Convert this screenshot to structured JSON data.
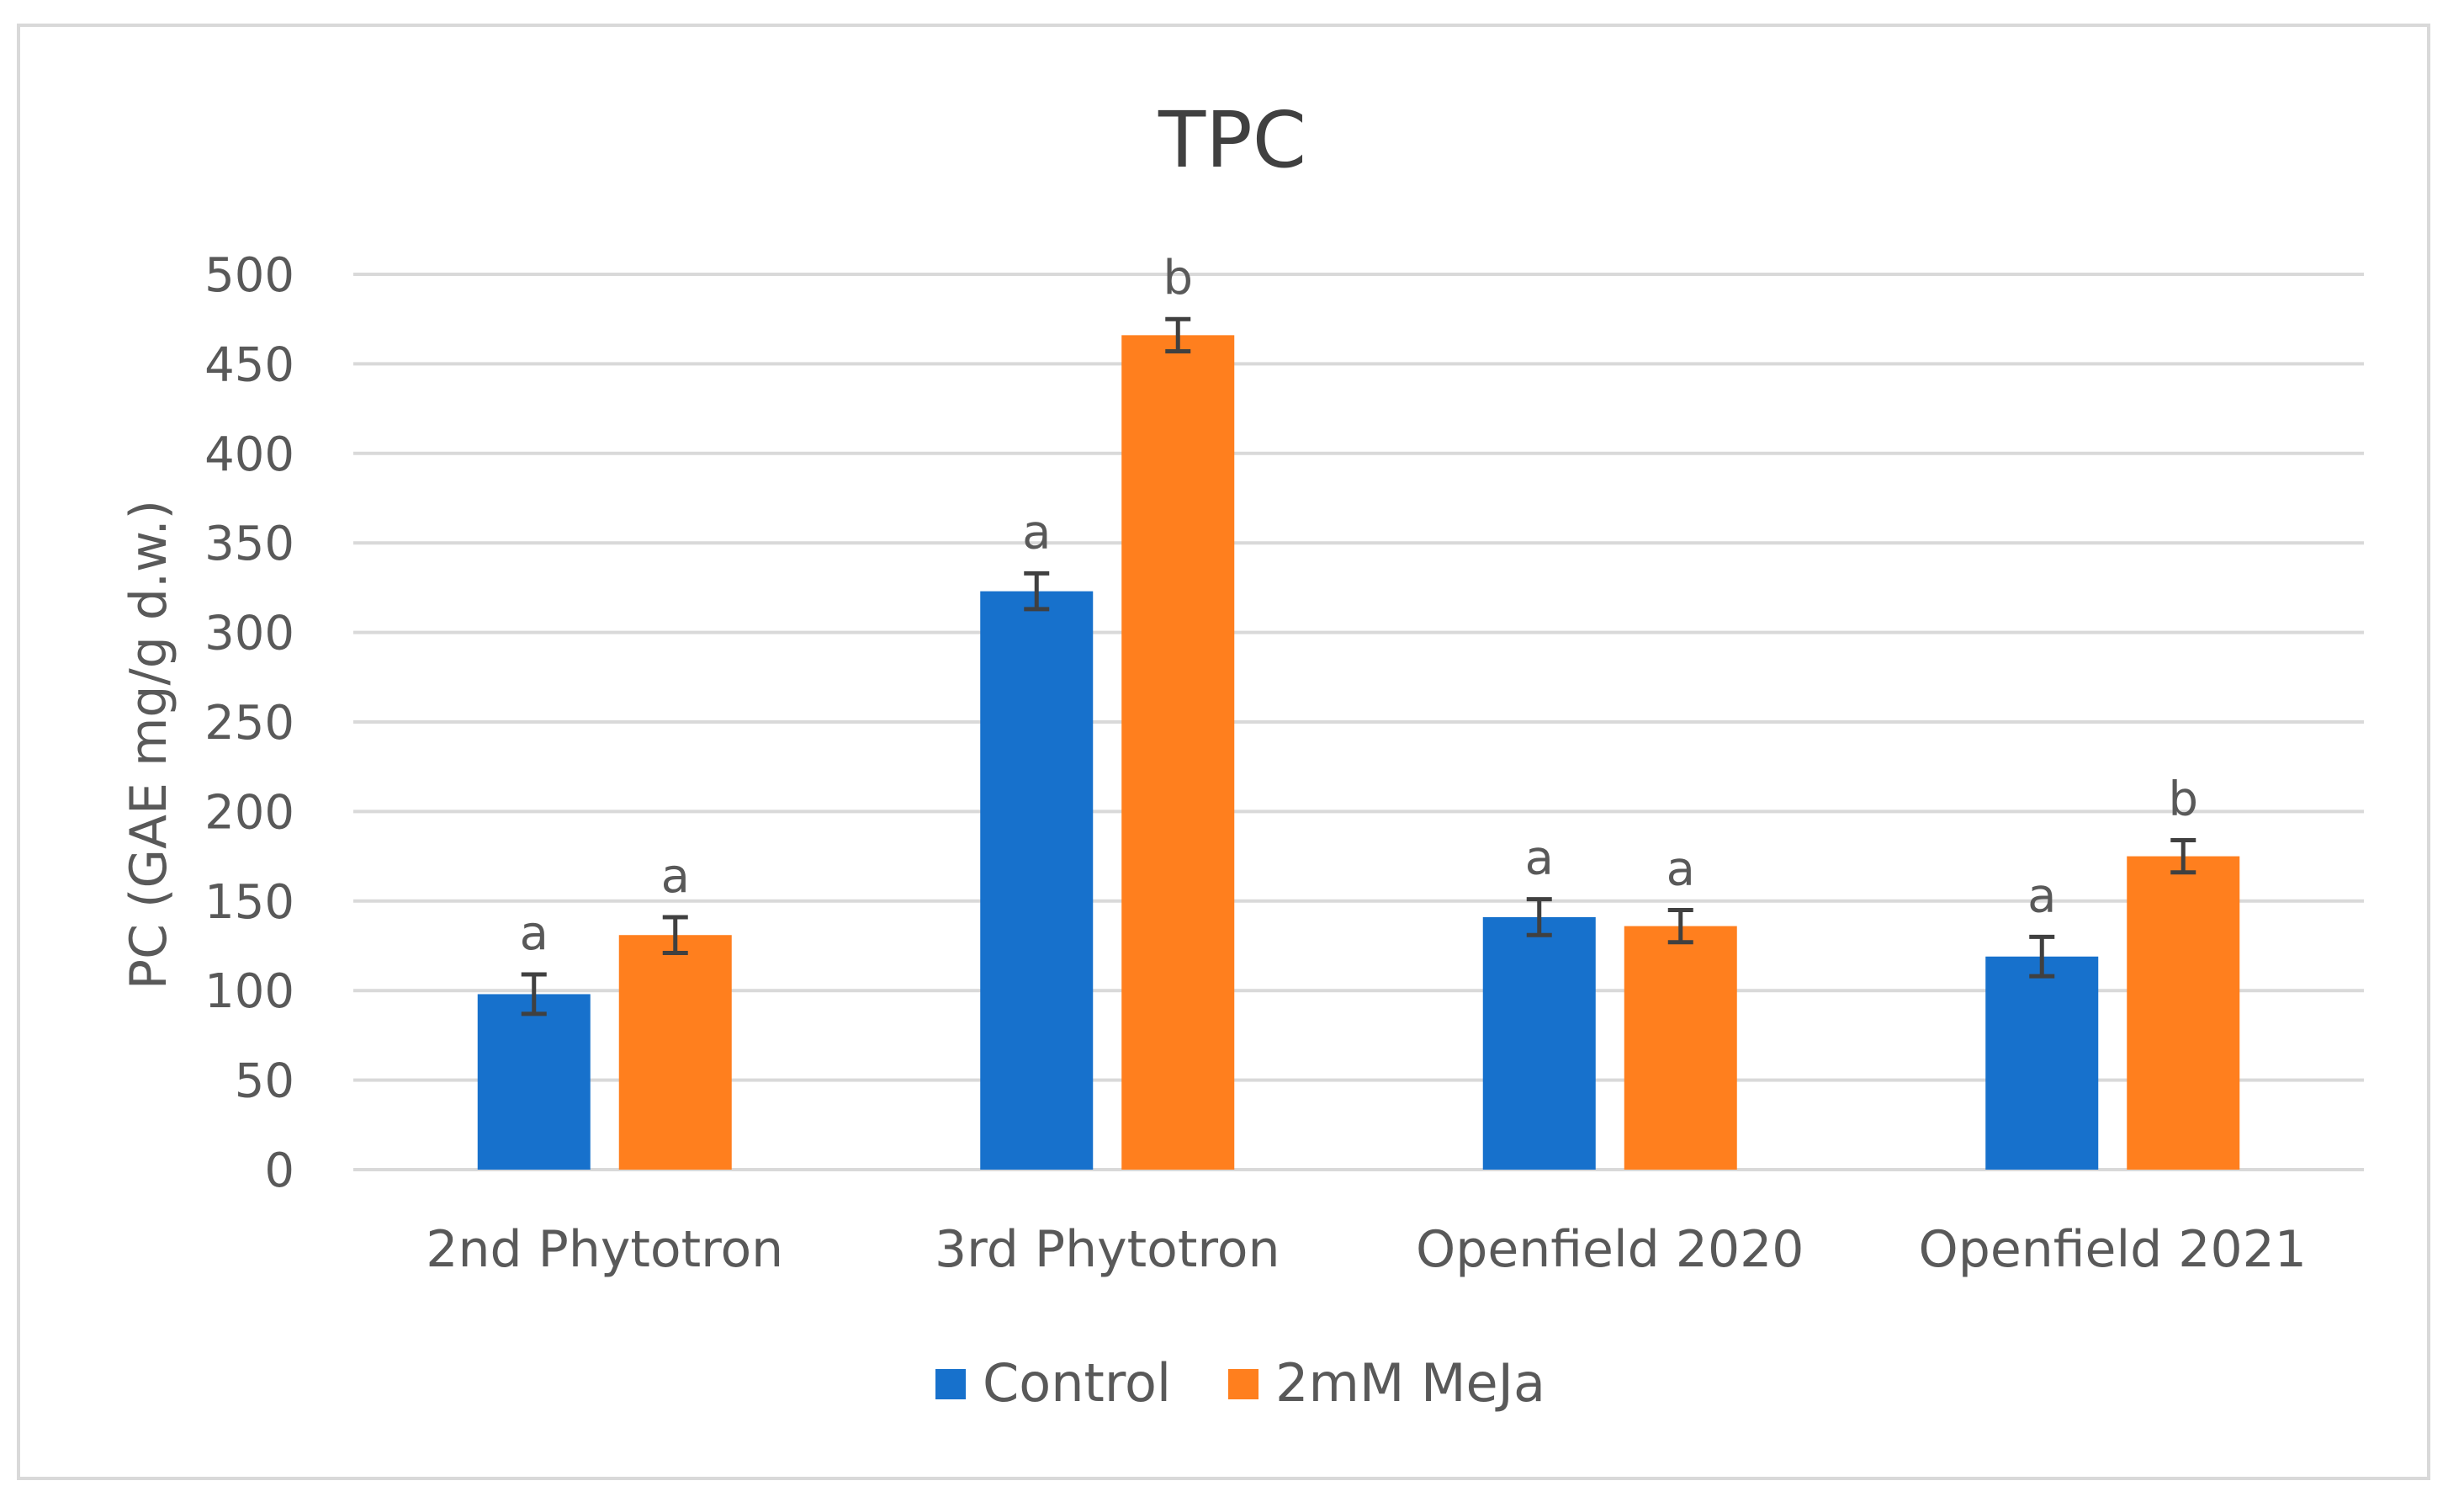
{
  "chart_data": {
    "type": "bar",
    "title": "TPC",
    "xlabel": "",
    "ylabel": "PC (GAE mg/g d.w.)",
    "ylim": [
      0,
      500
    ],
    "yticks": [
      0,
      50,
      100,
      150,
      200,
      250,
      300,
      350,
      400,
      450,
      500
    ],
    "grid": true,
    "legend_position": "bottom",
    "categories": [
      "2nd Phytotron",
      "3rd Phytotron",
      "Openfield 2020",
      "Openfield 2021"
    ],
    "series": [
      {
        "name": "Control",
        "color": "#1771CC",
        "values": [
          98,
          323,
          141,
          119
        ],
        "errors": [
          11,
          10,
          10,
          11
        ],
        "labels": [
          "a",
          "a",
          "a",
          "a"
        ]
      },
      {
        "name": "2mM MeJa",
        "color": "#FF7F1E",
        "values": [
          131,
          466,
          136,
          175
        ],
        "errors": [
          10,
          9,
          9,
          9
        ],
        "labels": [
          "a",
          "b",
          "a",
          "b"
        ]
      }
    ]
  }
}
